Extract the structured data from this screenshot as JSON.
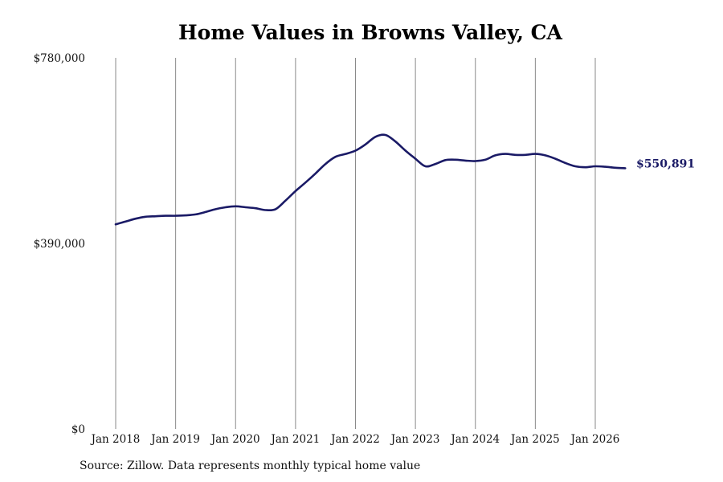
{
  "chart_data": {
    "type": "line",
    "title": "Home Values in Browns Valley, CA",
    "source_note": "Source: Zillow. Data represents monthly typical home value",
    "ylim": [
      0,
      780000
    ],
    "y_ticks": [
      {
        "value": 0,
        "label": "$0"
      },
      {
        "value": 390000,
        "label": "$390,000"
      },
      {
        "value": 780000,
        "label": "$780,000"
      }
    ],
    "x_ticks": [
      {
        "value": "2018-01",
        "label": "Jan 2018"
      },
      {
        "value": "2019-01",
        "label": "Jan 2019"
      },
      {
        "value": "2020-01",
        "label": "Jan 2020"
      },
      {
        "value": "2021-01",
        "label": "Jan 2021"
      },
      {
        "value": "2022-01",
        "label": "Jan 2022"
      },
      {
        "value": "2023-01",
        "label": "Jan 2023"
      },
      {
        "value": "2024-01",
        "label": "Jan 2024"
      },
      {
        "value": "2025-01",
        "label": "Jan 2025"
      },
      {
        "value": "2026-01",
        "label": "Jan 2026"
      }
    ],
    "grid": "vertical",
    "line_color": "#1a1a66",
    "end_label": "$550,891",
    "series": [
      {
        "points": [
          [
            "2018-01",
            430000
          ],
          [
            "2018-03",
            436000
          ],
          [
            "2018-05",
            442000
          ],
          [
            "2018-07",
            446000
          ],
          [
            "2018-09",
            447000
          ],
          [
            "2018-11",
            448000
          ],
          [
            "2019-01",
            448000
          ],
          [
            "2019-03",
            449000
          ],
          [
            "2019-05",
            451000
          ],
          [
            "2019-07",
            456000
          ],
          [
            "2019-09",
            462000
          ],
          [
            "2019-11",
            466000
          ],
          [
            "2020-01",
            468000
          ],
          [
            "2020-03",
            466000
          ],
          [
            "2020-05",
            464000
          ],
          [
            "2020-07",
            460000
          ],
          [
            "2020-09",
            462000
          ],
          [
            "2020-11",
            480000
          ],
          [
            "2021-01",
            500000
          ],
          [
            "2021-03",
            518000
          ],
          [
            "2021-05",
            537000
          ],
          [
            "2021-07",
            557000
          ],
          [
            "2021-09",
            572000
          ],
          [
            "2021-11",
            578000
          ],
          [
            "2022-01",
            585000
          ],
          [
            "2022-03",
            598000
          ],
          [
            "2022-05",
            614000
          ],
          [
            "2022-07",
            618000
          ],
          [
            "2022-09",
            604000
          ],
          [
            "2022-11",
            585000
          ],
          [
            "2023-01",
            568000
          ],
          [
            "2023-03",
            552000
          ],
          [
            "2023-05",
            557000
          ],
          [
            "2023-07",
            565000
          ],
          [
            "2023-09",
            566000
          ],
          [
            "2023-11",
            564000
          ],
          [
            "2024-01",
            563000
          ],
          [
            "2024-03",
            566000
          ],
          [
            "2024-05",
            575000
          ],
          [
            "2024-07",
            578000
          ],
          [
            "2024-09",
            576000
          ],
          [
            "2024-11",
            576000
          ],
          [
            "2025-01",
            578000
          ],
          [
            "2025-03",
            575000
          ],
          [
            "2025-05",
            568000
          ],
          [
            "2025-07",
            559000
          ],
          [
            "2025-09",
            552000
          ],
          [
            "2025-11",
            550000
          ],
          [
            "2026-01",
            552000
          ],
          [
            "2026-03",
            551000
          ],
          [
            "2026-05",
            549000
          ],
          [
            "2026-07",
            548000
          ]
        ]
      }
    ]
  }
}
